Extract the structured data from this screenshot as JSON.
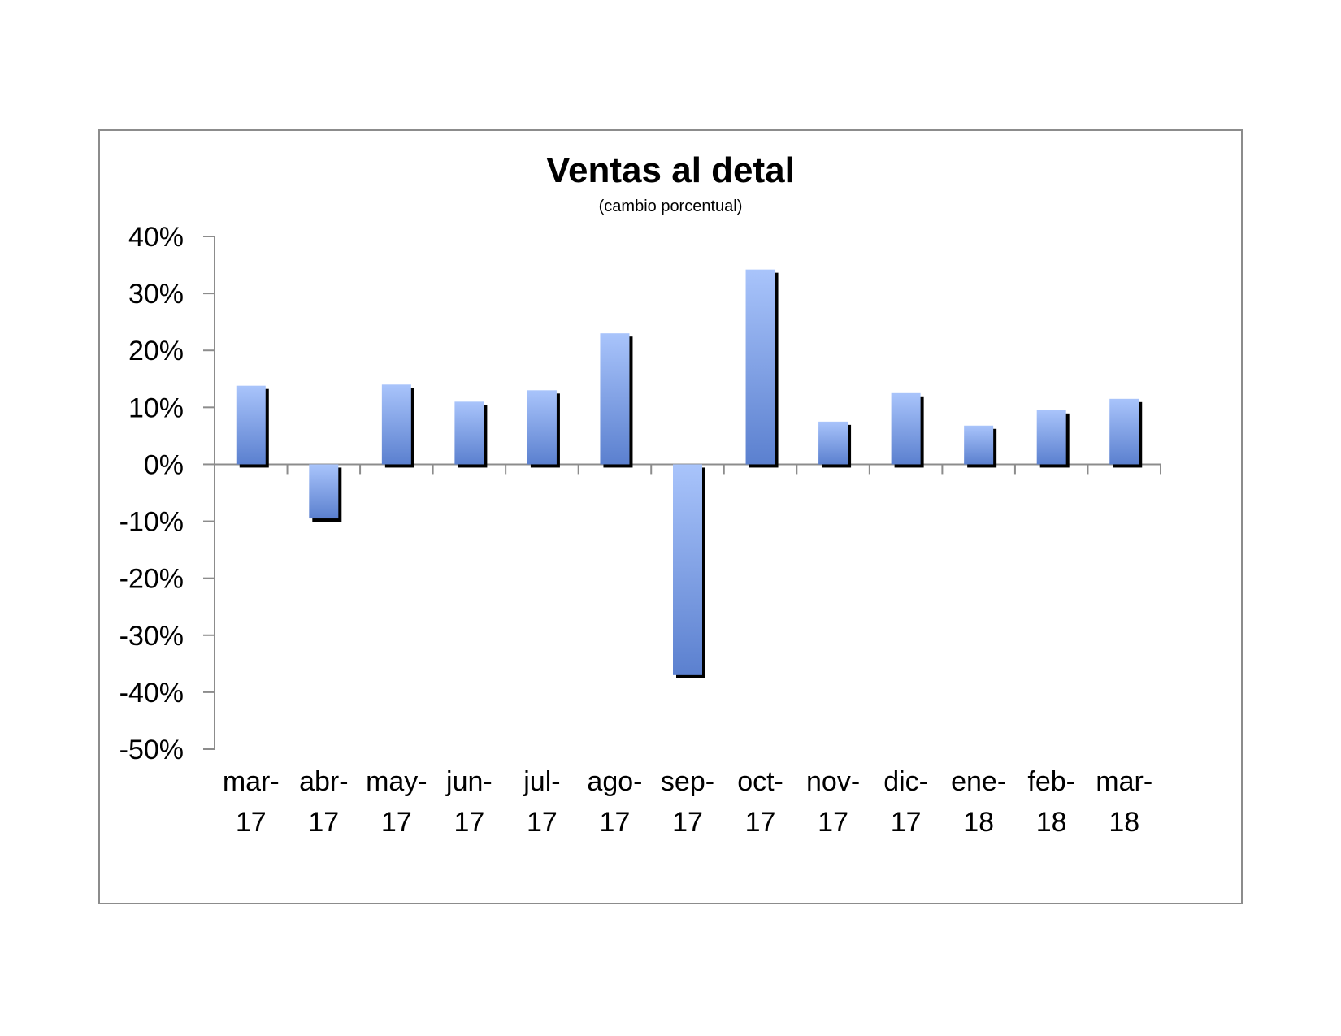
{
  "chart_data": {
    "type": "bar",
    "title": "Ventas al detal",
    "subtitle": "(cambio porcentual)",
    "xlabel": "",
    "ylabel": "",
    "categories": [
      [
        "mar-",
        "17"
      ],
      [
        "abr-",
        "17"
      ],
      [
        "may-",
        "17"
      ],
      [
        "jun-",
        "17"
      ],
      [
        "jul-",
        "17"
      ],
      [
        "ago-",
        "17"
      ],
      [
        "sep-",
        "17"
      ],
      [
        "oct-",
        "17"
      ],
      [
        "nov-",
        "17"
      ],
      [
        "dic-",
        "17"
      ],
      [
        "ene-",
        "18"
      ],
      [
        "feb-",
        "18"
      ],
      [
        "mar-",
        "18"
      ]
    ],
    "values": [
      13.8,
      -9.5,
      14.0,
      11.0,
      13.0,
      23.0,
      -37.0,
      34.2,
      7.5,
      12.5,
      6.8,
      9.5,
      11.5
    ],
    "ylim": [
      -50,
      40
    ],
    "yticks": [
      40,
      30,
      20,
      10,
      0,
      -10,
      -20,
      -30,
      -40,
      -50
    ],
    "ytick_labels": [
      "40%",
      "30%",
      "20%",
      "10%",
      "0%",
      "-10%",
      "-20%",
      "-30%",
      "-40%",
      "-50%"
    ],
    "grid": false,
    "legend": "none",
    "colors": {
      "bar_top": "#a9c4fb",
      "bar_bottom": "#5b80cf",
      "shadow": "#000000",
      "axis": "#8c8c8c",
      "frame": "#8c8c8c"
    }
  }
}
